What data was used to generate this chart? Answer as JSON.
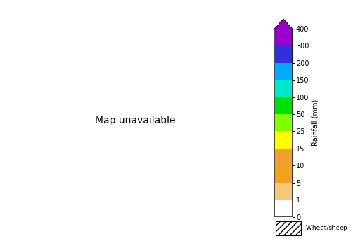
{
  "colorbar_levels": [
    0,
    1,
    5,
    10,
    15,
    25,
    50,
    100,
    150,
    200,
    300,
    400
  ],
  "interval_colors": [
    "#ffffff",
    "#f5c97a",
    "#f5a020",
    "#f0a030",
    "#ffff00",
    "#7fff00",
    "#00e000",
    "#00e8cc",
    "#00aaff",
    "#3030dd",
    "#9900cc",
    "#ff00ff"
  ],
  "colorbar_label": "Rainfall (mm)",
  "colorbar_tick_labels": [
    "0",
    "1",
    "5",
    "10",
    "15",
    "25",
    "50",
    "100",
    "150",
    "200",
    "300",
    "400"
  ],
  "legend_hatch_label": "Wheat/sheep zone",
  "background_color": "#ffffff",
  "fig_width": 5.0,
  "fig_height": 3.44,
  "dpi": 100,
  "map_extent": [
    112.0,
    154.0,
    -44.5,
    -9.5
  ],
  "rainfall_seed": 42
}
